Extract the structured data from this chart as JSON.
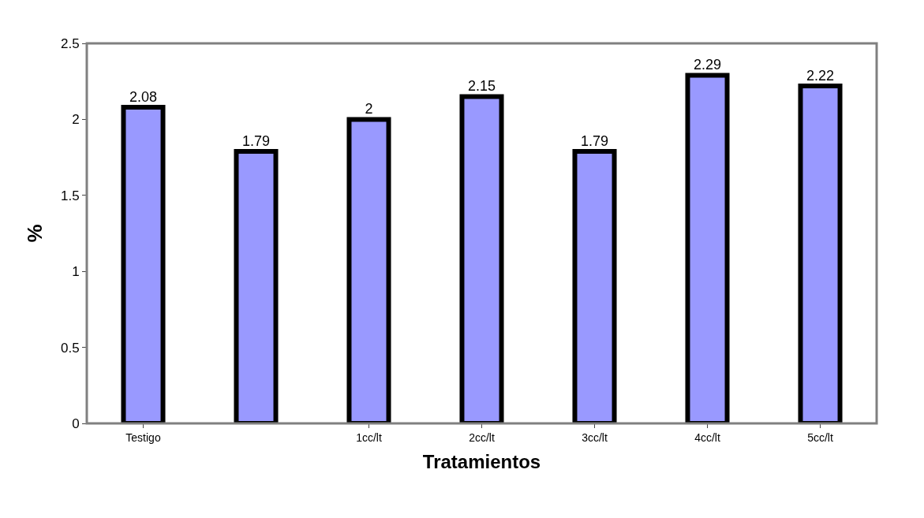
{
  "chart_data": {
    "type": "bar",
    "categories": [
      "Testigo",
      null,
      "1cc/lt",
      "2cc/lt",
      "3cc/lt",
      "4cc/lt",
      "5cc/lt"
    ],
    "values": [
      2.08,
      1.79,
      2,
      2.15,
      1.79,
      2.29,
      2.22
    ],
    "color": "#9999ff",
    "xlabel": "Tratamientos",
    "ylabel": "%",
    "ylim": [
      0,
      2.5
    ],
    "yticks": [
      0,
      0.5,
      1,
      1.5,
      2,
      2.5
    ],
    "data_labels": true
  }
}
